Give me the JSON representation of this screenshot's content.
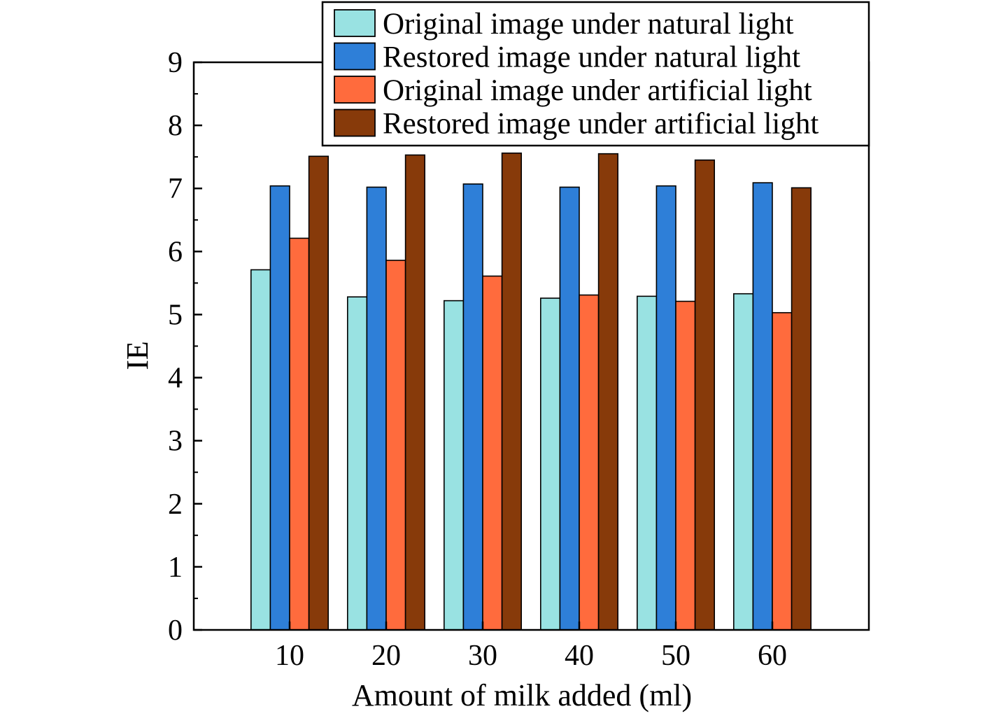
{
  "chart_data": {
    "type": "bar",
    "xlabel": "Amount of milk added (ml)",
    "ylabel": "IE",
    "categories": [
      "10",
      "20",
      "30",
      "40",
      "50",
      "60"
    ],
    "ylim": [
      0,
      9
    ],
    "yticks": [
      "0",
      "1",
      "2",
      "3",
      "4",
      "5",
      "6",
      "7",
      "8",
      "9"
    ],
    "grid": false,
    "legend_position": "top-right",
    "series": [
      {
        "name": "Original image under natural light",
        "color": "#99e2e2",
        "values": [
          5.71,
          5.28,
          5.22,
          5.26,
          5.29,
          5.33
        ]
      },
      {
        "name": "Restored image under natural light",
        "color": "#2e7fd8",
        "values": [
          7.04,
          7.02,
          7.07,
          7.02,
          7.04,
          7.09
        ]
      },
      {
        "name": "Original image under artificial light",
        "color": "#ff6b3d",
        "values": [
          6.21,
          5.86,
          5.61,
          5.31,
          5.21,
          5.03
        ]
      },
      {
        "name": "Restored image under artificial light",
        "color": "#873a0a",
        "values": [
          7.51,
          7.53,
          7.56,
          7.55,
          7.45,
          7.01
        ]
      }
    ]
  }
}
